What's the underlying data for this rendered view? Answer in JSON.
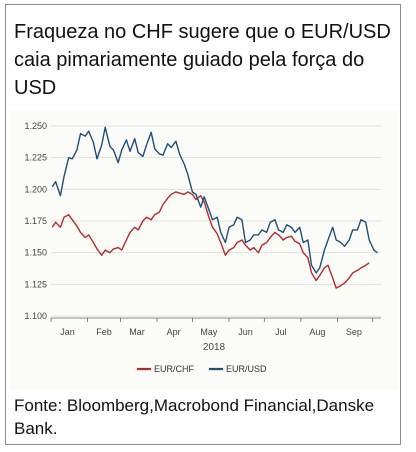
{
  "title": "Fraqueza no CHF sugere que o EUR/USD caia pimariamente guiado pela força do USD",
  "footer": "Fonte: Bloomberg,Macrobond Financial,Danske Bank.",
  "chart_data": {
    "type": "line",
    "x_unit": "date",
    "xlabel": "2018",
    "ylim": [
      1.1,
      1.25
    ],
    "yticks": [
      "1.250",
      "1.225",
      "1.200",
      "1.175",
      "1.150",
      "1.125",
      "1.100"
    ],
    "xticks": [
      "Jan",
      "Feb",
      "Mar",
      "Apr",
      "May",
      "Jun",
      "Jul",
      "Aug",
      "Sep"
    ],
    "legend_position": "bottom-center",
    "series": [
      {
        "name": "EUR/CHF",
        "color": "#b22a32",
        "points": [
          [
            "2018-01-02",
            1.17
          ],
          [
            "2018-01-05",
            1.174
          ],
          [
            "2018-01-09",
            1.17
          ],
          [
            "2018-01-12",
            1.178
          ],
          [
            "2018-01-16",
            1.18
          ],
          [
            "2018-01-19",
            1.176
          ],
          [
            "2018-01-23",
            1.171
          ],
          [
            "2018-01-26",
            1.166
          ],
          [
            "2018-01-30",
            1.162
          ],
          [
            "2018-02-02",
            1.164
          ],
          [
            "2018-02-06",
            1.158
          ],
          [
            "2018-02-09",
            1.153
          ],
          [
            "2018-02-13",
            1.148
          ],
          [
            "2018-02-16",
            1.152
          ],
          [
            "2018-02-20",
            1.15
          ],
          [
            "2018-02-23",
            1.153
          ],
          [
            "2018-02-27",
            1.154
          ],
          [
            "2018-03-02",
            1.152
          ],
          [
            "2018-03-06",
            1.16
          ],
          [
            "2018-03-09",
            1.166
          ],
          [
            "2018-03-13",
            1.17
          ],
          [
            "2018-03-16",
            1.168
          ],
          [
            "2018-03-20",
            1.175
          ],
          [
            "2018-03-23",
            1.178
          ],
          [
            "2018-03-27",
            1.176
          ],
          [
            "2018-03-30",
            1.18
          ],
          [
            "2018-04-03",
            1.182
          ],
          [
            "2018-04-06",
            1.188
          ],
          [
            "2018-04-10",
            1.193
          ],
          [
            "2018-04-13",
            1.196
          ],
          [
            "2018-04-17",
            1.198
          ],
          [
            "2018-04-20",
            1.197
          ],
          [
            "2018-04-24",
            1.196
          ],
          [
            "2018-04-27",
            1.198
          ],
          [
            "2018-05-01",
            1.196
          ],
          [
            "2018-05-04",
            1.192
          ],
          [
            "2018-05-08",
            1.195
          ],
          [
            "2018-05-11",
            1.19
          ],
          [
            "2018-05-15",
            1.178
          ],
          [
            "2018-05-18",
            1.17
          ],
          [
            "2018-05-22",
            1.165
          ],
          [
            "2018-05-25",
            1.158
          ],
          [
            "2018-05-29",
            1.148
          ],
          [
            "2018-06-01",
            1.152
          ],
          [
            "2018-06-05",
            1.154
          ],
          [
            "2018-06-08",
            1.158
          ],
          [
            "2018-06-12",
            1.16
          ],
          [
            "2018-06-15",
            1.156
          ],
          [
            "2018-06-19",
            1.152
          ],
          [
            "2018-06-22",
            1.154
          ],
          [
            "2018-06-26",
            1.15
          ],
          [
            "2018-06-29",
            1.156
          ],
          [
            "2018-07-03",
            1.158
          ],
          [
            "2018-07-06",
            1.162
          ],
          [
            "2018-07-10",
            1.166
          ],
          [
            "2018-07-13",
            1.164
          ],
          [
            "2018-07-17",
            1.16
          ],
          [
            "2018-07-20",
            1.162
          ],
          [
            "2018-07-24",
            1.163
          ],
          [
            "2018-07-27",
            1.159
          ],
          [
            "2018-07-31",
            1.157
          ],
          [
            "2018-08-03",
            1.15
          ],
          [
            "2018-08-07",
            1.146
          ],
          [
            "2018-08-10",
            1.134
          ],
          [
            "2018-08-14",
            1.128
          ],
          [
            "2018-08-17",
            1.132
          ],
          [
            "2018-08-21",
            1.138
          ],
          [
            "2018-08-24",
            1.14
          ],
          [
            "2018-08-28",
            1.13
          ],
          [
            "2018-08-31",
            1.122
          ],
          [
            "2018-09-04",
            1.124
          ],
          [
            "2018-09-07",
            1.126
          ],
          [
            "2018-09-11",
            1.13
          ],
          [
            "2018-09-14",
            1.134
          ],
          [
            "2018-09-18",
            1.136
          ],
          [
            "2018-09-21",
            1.138
          ],
          [
            "2018-09-25",
            1.14
          ],
          [
            "2018-09-28",
            1.142
          ]
        ]
      },
      {
        "name": "EUR/USD",
        "color": "#1f4e79",
        "points": [
          [
            "2018-01-02",
            1.202
          ],
          [
            "2018-01-05",
            1.206
          ],
          [
            "2018-01-09",
            1.195
          ],
          [
            "2018-01-12",
            1.21
          ],
          [
            "2018-01-16",
            1.225
          ],
          [
            "2018-01-19",
            1.224
          ],
          [
            "2018-01-23",
            1.231
          ],
          [
            "2018-01-26",
            1.244
          ],
          [
            "2018-01-30",
            1.242
          ],
          [
            "2018-02-02",
            1.246
          ],
          [
            "2018-02-06",
            1.237
          ],
          [
            "2018-02-09",
            1.224
          ],
          [
            "2018-02-13",
            1.235
          ],
          [
            "2018-02-16",
            1.249
          ],
          [
            "2018-02-20",
            1.234
          ],
          [
            "2018-02-23",
            1.231
          ],
          [
            "2018-02-27",
            1.221
          ],
          [
            "2018-03-02",
            1.231
          ],
          [
            "2018-03-06",
            1.239
          ],
          [
            "2018-03-09",
            1.23
          ],
          [
            "2018-03-13",
            1.24
          ],
          [
            "2018-03-16",
            1.229
          ],
          [
            "2018-03-20",
            1.226
          ],
          [
            "2018-03-23",
            1.235
          ],
          [
            "2018-03-27",
            1.245
          ],
          [
            "2018-03-30",
            1.232
          ],
          [
            "2018-04-03",
            1.228
          ],
          [
            "2018-04-06",
            1.227
          ],
          [
            "2018-04-10",
            1.236
          ],
          [
            "2018-04-13",
            1.233
          ],
          [
            "2018-04-17",
            1.238
          ],
          [
            "2018-04-20",
            1.228
          ],
          [
            "2018-04-24",
            1.22
          ],
          [
            "2018-04-27",
            1.212
          ],
          [
            "2018-05-01",
            1.198
          ],
          [
            "2018-05-04",
            1.196
          ],
          [
            "2018-05-08",
            1.186
          ],
          [
            "2018-05-11",
            1.194
          ],
          [
            "2018-05-15",
            1.184
          ],
          [
            "2018-05-18",
            1.176
          ],
          [
            "2018-05-22",
            1.178
          ],
          [
            "2018-05-25",
            1.166
          ],
          [
            "2018-05-29",
            1.158
          ],
          [
            "2018-06-01",
            1.17
          ],
          [
            "2018-06-05",
            1.172
          ],
          [
            "2018-06-08",
            1.178
          ],
          [
            "2018-06-12",
            1.176
          ],
          [
            "2018-06-15",
            1.158
          ],
          [
            "2018-06-19",
            1.16
          ],
          [
            "2018-06-22",
            1.164
          ],
          [
            "2018-06-26",
            1.164
          ],
          [
            "2018-06-29",
            1.168
          ],
          [
            "2018-07-03",
            1.166
          ],
          [
            "2018-07-06",
            1.174
          ],
          [
            "2018-07-10",
            1.176
          ],
          [
            "2018-07-13",
            1.168
          ],
          [
            "2018-07-17",
            1.166
          ],
          [
            "2018-07-20",
            1.172
          ],
          [
            "2018-07-24",
            1.17
          ],
          [
            "2018-07-27",
            1.166
          ],
          [
            "2018-07-31",
            1.17
          ],
          [
            "2018-08-03",
            1.158
          ],
          [
            "2018-08-07",
            1.16
          ],
          [
            "2018-08-10",
            1.14
          ],
          [
            "2018-08-14",
            1.134
          ],
          [
            "2018-08-17",
            1.138
          ],
          [
            "2018-08-21",
            1.152
          ],
          [
            "2018-08-24",
            1.16
          ],
          [
            "2018-08-28",
            1.17
          ],
          [
            "2018-08-31",
            1.16
          ],
          [
            "2018-09-04",
            1.158
          ],
          [
            "2018-09-07",
            1.155
          ],
          [
            "2018-09-11",
            1.16
          ],
          [
            "2018-09-14",
            1.168
          ],
          [
            "2018-09-18",
            1.168
          ],
          [
            "2018-09-21",
            1.176
          ],
          [
            "2018-09-25",
            1.174
          ],
          [
            "2018-09-28",
            1.16
          ],
          [
            "2018-10-02",
            1.152
          ],
          [
            "2018-10-05",
            1.15
          ]
        ]
      }
    ]
  }
}
